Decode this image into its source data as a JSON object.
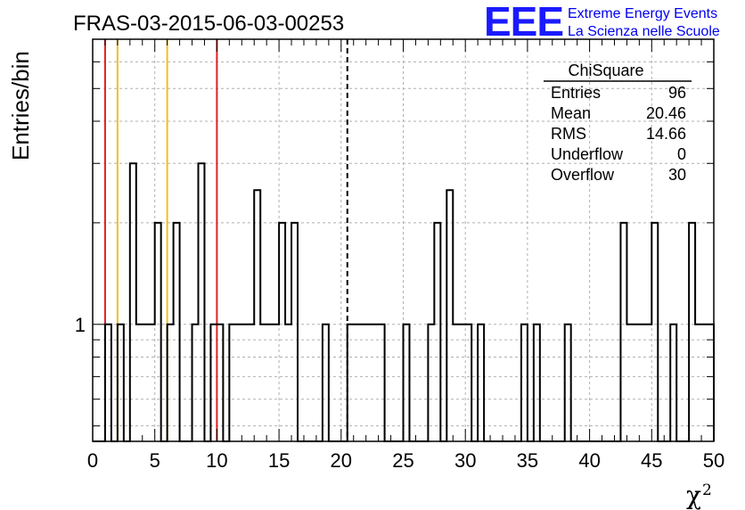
{
  "chart_data": {
    "type": "histogram",
    "title": "FRAS-03-2015-06-03-00253",
    "logo": {
      "mark": "EEE",
      "line1": "Extreme Energy Events",
      "line2": "La Scienza nelle Scuole"
    },
    "xlabel": "χ",
    "xlabel_superscript": "2",
    "ylabel": "Entries/bin",
    "xlim": [
      0,
      50
    ],
    "ylim": [
      0.45,
      7
    ],
    "yscale": "log",
    "grid": true,
    "x_ticks": [
      "0",
      "5",
      "10",
      "15",
      "20",
      "25",
      "30",
      "35",
      "40",
      "45",
      "50"
    ],
    "y_ticks": [
      "1"
    ],
    "bin_width": 0.5,
    "bins": [
      {
        "x": 1.0,
        "count": 1
      },
      {
        "x": 2.0,
        "count": 1
      },
      {
        "x": 3.0,
        "count": 3
      },
      {
        "x": 3.5,
        "count": 1
      },
      {
        "x": 4.0,
        "count": 1
      },
      {
        "x": 4.5,
        "count": 1
      },
      {
        "x": 5.0,
        "count": 2
      },
      {
        "x": 6.0,
        "count": 1
      },
      {
        "x": 6.5,
        "count": 2
      },
      {
        "x": 8.0,
        "count": 1
      },
      {
        "x": 8.5,
        "count": 3
      },
      {
        "x": 9.5,
        "count": 1
      },
      {
        "x": 10.0,
        "count": 1
      },
      {
        "x": 11.0,
        "count": 1
      },
      {
        "x": 11.5,
        "count": 1
      },
      {
        "x": 12.0,
        "count": 1
      },
      {
        "x": 12.5,
        "count": 1
      },
      {
        "x": 13.0,
        "count": 2.5
      },
      {
        "x": 13.5,
        "count": 1
      },
      {
        "x": 14.0,
        "count": 1
      },
      {
        "x": 14.5,
        "count": 1
      },
      {
        "x": 15.0,
        "count": 2
      },
      {
        "x": 15.5,
        "count": 1
      },
      {
        "x": 16.0,
        "count": 2
      },
      {
        "x": 18.5,
        "count": 1
      },
      {
        "x": 20.5,
        "count": 1
      },
      {
        "x": 21.0,
        "count": 1
      },
      {
        "x": 21.5,
        "count": 1
      },
      {
        "x": 22.0,
        "count": 1
      },
      {
        "x": 22.5,
        "count": 1
      },
      {
        "x": 23.0,
        "count": 1
      },
      {
        "x": 25.0,
        "count": 1
      },
      {
        "x": 27.0,
        "count": 1
      },
      {
        "x": 27.5,
        "count": 2
      },
      {
        "x": 28.5,
        "count": 2.5
      },
      {
        "x": 29.0,
        "count": 1
      },
      {
        "x": 29.5,
        "count": 1
      },
      {
        "x": 30.0,
        "count": 1
      },
      {
        "x": 31.0,
        "count": 1
      },
      {
        "x": 34.5,
        "count": 1
      },
      {
        "x": 35.5,
        "count": 1
      },
      {
        "x": 38.0,
        "count": 1
      },
      {
        "x": 42.5,
        "count": 2
      },
      {
        "x": 43.0,
        "count": 1
      },
      {
        "x": 43.5,
        "count": 1
      },
      {
        "x": 44.0,
        "count": 1
      },
      {
        "x": 44.5,
        "count": 1
      },
      {
        "x": 45.0,
        "count": 2
      },
      {
        "x": 46.5,
        "count": 1
      },
      {
        "x": 48.0,
        "count": 2
      },
      {
        "x": 48.5,
        "count": 1
      },
      {
        "x": 49.0,
        "count": 1
      },
      {
        "x": 49.5,
        "count": 1
      }
    ],
    "reference_lines": [
      {
        "x": 1.0,
        "color": "#dd2222",
        "style": "solid"
      },
      {
        "x": 2.0,
        "color": "#f0c020",
        "style": "solid"
      },
      {
        "x": 6.0,
        "color": "#f0c020",
        "style": "solid"
      },
      {
        "x": 10.0,
        "color": "#dd2222",
        "style": "solid"
      },
      {
        "x": 20.5,
        "color": "#000000",
        "style": "dashed"
      }
    ],
    "stats_box": {
      "title": "ChiSquare",
      "placement": "top-right",
      "rows": [
        {
          "label": "Entries",
          "value": "96"
        },
        {
          "label": "Mean",
          "value": "20.46"
        },
        {
          "label": "RMS",
          "value": "14.66"
        },
        {
          "label": "Underflow",
          "value": "0"
        },
        {
          "label": "Overflow",
          "value": "30"
        }
      ]
    }
  }
}
